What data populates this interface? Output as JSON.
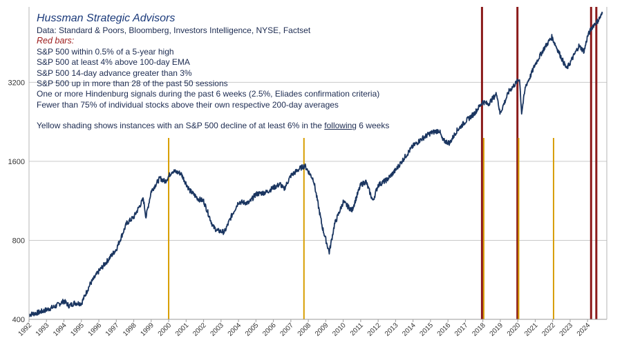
{
  "chart_data": {
    "type": "line",
    "title": "Hussman Strategic Advisors",
    "source": "Data: Standard & Poors, Bloomberg, Investors Intelligence, NYSE, Factset",
    "legend_red_heading": "Red bars:",
    "legend_red_items": [
      "S&P 500 within 0.5% of a 5-year high",
      "S&P 500 at least 4% above 100-day EMA",
      "S&P 500 14-day advance greater than 3%",
      "S&P 500 up in more than 28 of the past 50 sessions",
      "One or more Hindenburg signals during the past 6 weeks (2.5%, Eliades confirmation criteria)",
      "Fewer than 75% of individual stocks above their own respective 200-day averages"
    ],
    "yellow_note": {
      "before": "Yellow shading shows instances with an S&P 500 decline of at least 6% in the ",
      "underlined": "following",
      "after": " 6 weeks"
    },
    "yscale": "log",
    "ylim": [
      400,
      6200
    ],
    "xlim": [
      1992.0,
      2025.1
    ],
    "yticks": [
      "400",
      "800",
      "1600",
      "3200"
    ],
    "ytick_values": [
      400,
      800,
      1600,
      3200
    ],
    "xticks": [
      "1992",
      "1993",
      "1994",
      "1995",
      "1996",
      "1997",
      "1998",
      "1999",
      "2000",
      "2001",
      "2002",
      "2003",
      "2004",
      "2005",
      "2006",
      "2007",
      "2008",
      "2009",
      "2010",
      "2011",
      "2012",
      "2013",
      "2014",
      "2015",
      "2016",
      "2017",
      "2018",
      "2019",
      "2020",
      "2021",
      "2022",
      "2023",
      "2024"
    ],
    "series": [
      {
        "name": "S&P 500",
        "color": "#1a3560",
        "x": [
          1992.0,
          1992.5,
          1993.0,
          1993.5,
          1994.0,
          1994.3,
          1994.6,
          1995.0,
          1995.5,
          1996.0,
          1996.5,
          1997.0,
          1997.6,
          1998.0,
          1998.55,
          1998.7,
          1999.0,
          1999.5,
          1999.8,
          2000.2,
          2000.7,
          2001.2,
          2001.7,
          2002.0,
          2002.55,
          2002.8,
          2003.2,
          2003.6,
          2004.0,
          2004.6,
          2005.0,
          2005.6,
          2006.0,
          2006.4,
          2006.6,
          2007.0,
          2007.5,
          2007.8,
          2008.3,
          2008.8,
          2009.2,
          2009.5,
          2010.0,
          2010.5,
          2011.0,
          2011.3,
          2011.7,
          2012.0,
          2012.5,
          2013.0,
          2013.5,
          2014.0,
          2014.5,
          2015.0,
          2015.5,
          2015.7,
          2016.1,
          2016.5,
          2017.0,
          2017.5,
          2018.0,
          2018.3,
          2018.8,
          2018.98,
          2019.5,
          2020.1,
          2020.22,
          2020.45,
          2020.7,
          2021.0,
          2021.5,
          2021.95,
          2022.4,
          2022.8,
          2023.0,
          2023.5,
          2023.8,
          2024.0,
          2024.3,
          2024.6,
          2024.85
        ],
        "values": [
          417,
          424,
          435,
          448,
          470,
          450,
          462,
          460,
          545,
          610,
          670,
          740,
          930,
          980,
          1150,
          980,
          1230,
          1380,
          1340,
          1470,
          1440,
          1240,
          1150,
          1130,
          900,
          870,
          860,
          990,
          1120,
          1110,
          1200,
          1220,
          1270,
          1310,
          1250,
          1410,
          1500,
          1540,
          1360,
          900,
          720,
          920,
          1120,
          1040,
          1300,
          1340,
          1130,
          1300,
          1360,
          1480,
          1650,
          1830,
          1950,
          2050,
          2100,
          1920,
          1880,
          2090,
          2270,
          2430,
          2700,
          2640,
          2900,
          2430,
          2960,
          3300,
          2450,
          3100,
          3350,
          3750,
          4300,
          4760,
          4100,
          3600,
          3800,
          4400,
          4200,
          4800,
          5250,
          5500,
          5850
        ]
      }
    ],
    "signals": {
      "yellow_years": [
        2000.0,
        2007.75,
        2018.05,
        2020.05,
        2022.05
      ],
      "red_years": [
        2017.95,
        2019.98,
        2024.2,
        2024.5
      ]
    },
    "colors": {
      "yellow": "#d79d00",
      "red": "#8b1a1a",
      "line": "#1a3560",
      "grid": "#c9c9c9",
      "axis_text": "#333333"
    }
  }
}
